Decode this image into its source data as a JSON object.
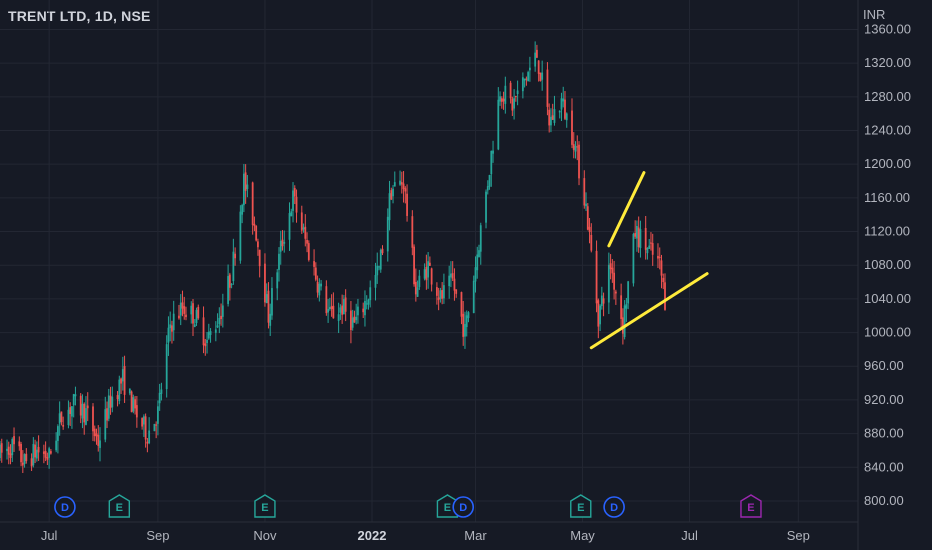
{
  "header": {
    "symbol": "TRENT LTD, 1D, NSE",
    "currency": "INR"
  },
  "colors": {
    "up": "#26a69a",
    "down": "#ef5350",
    "trendline": "#ffeb3b",
    "background": "#161a25",
    "grid": "#232733",
    "text": "#b2b5be",
    "dividend": "#2962ff",
    "earnings": "#26a69a",
    "earnings_future": "#9c27b0"
  },
  "chart_data": {
    "type": "candlestick",
    "title": "TRENT LTD, 1D, NSE",
    "ylabel": "INR",
    "ylim": [
      775,
      1395
    ],
    "y_ticks": [
      "1360.00",
      "1320.00",
      "1280.00",
      "1240.00",
      "1200.00",
      "1160.00",
      "1120.00",
      "1080.00",
      "1040.00",
      "1000.00",
      "960.00",
      "920.00",
      "880.00",
      "840.00",
      "800.00"
    ],
    "x_ticks": [
      {
        "label": "Jul",
        "date": "2021-07-01",
        "bold": false
      },
      {
        "label": "Sep",
        "date": "2021-09-01",
        "bold": false
      },
      {
        "label": "Nov",
        "date": "2021-11-01",
        "bold": false
      },
      {
        "label": "2022",
        "date": "2022-01-01",
        "bold": true
      },
      {
        "label": "Mar",
        "date": "2022-03-01",
        "bold": false
      },
      {
        "label": "May",
        "date": "2022-05-01",
        "bold": false
      },
      {
        "label": "Jul",
        "date": "2022-07-01",
        "bold": false
      },
      {
        "label": "Sep",
        "date": "2022-09-01",
        "bold": false
      }
    ],
    "x_range": [
      "2021-06-03",
      "2022-10-05"
    ],
    "price_path": [
      [
        "2021-06-03",
        855
      ],
      [
        "2021-06-10",
        865
      ],
      [
        "2021-06-17",
        845
      ],
      [
        "2021-06-24",
        860
      ],
      [
        "2021-07-01",
        852
      ],
      [
        "2021-07-08",
        900
      ],
      [
        "2021-07-15",
        915
      ],
      [
        "2021-07-22",
        905
      ],
      [
        "2021-07-29",
        870
      ],
      [
        "2021-08-05",
        920
      ],
      [
        "2021-08-12",
        945
      ],
      [
        "2021-08-19",
        905
      ],
      [
        "2021-08-26",
        880
      ],
      [
        "2021-09-01",
        905
      ],
      [
        "2021-09-08",
        1010
      ],
      [
        "2021-09-15",
        1030
      ],
      [
        "2021-09-22",
        1020
      ],
      [
        "2021-09-29",
        990
      ],
      [
        "2021-10-06",
        1020
      ],
      [
        "2021-10-13",
        1070
      ],
      [
        "2021-10-20",
        1180
      ],
      [
        "2021-10-27",
        1120
      ],
      [
        "2021-11-03",
        1020
      ],
      [
        "2021-11-10",
        1100
      ],
      [
        "2021-11-17",
        1160
      ],
      [
        "2021-11-24",
        1110
      ],
      [
        "2021-12-01",
        1060
      ],
      [
        "2021-12-08",
        1020
      ],
      [
        "2021-12-15",
        1030
      ],
      [
        "2021-12-22",
        1010
      ],
      [
        "2021-12-29",
        1040
      ],
      [
        "2022-01-05",
        1075
      ],
      [
        "2022-01-12",
        1170
      ],
      [
        "2022-01-19",
        1180
      ],
      [
        "2022-01-26",
        1050
      ],
      [
        "2022-02-02",
        1080
      ],
      [
        "2022-02-09",
        1040
      ],
      [
        "2022-02-16",
        1060
      ],
      [
        "2022-02-23",
        1000
      ],
      [
        "2022-03-01",
        1080
      ],
      [
        "2022-03-08",
        1180
      ],
      [
        "2022-03-15",
        1290
      ],
      [
        "2022-03-22",
        1270
      ],
      [
        "2022-03-29",
        1300
      ],
      [
        "2022-04-05",
        1330
      ],
      [
        "2022-04-12",
        1250
      ],
      [
        "2022-04-19",
        1275
      ],
      [
        "2022-04-26",
        1230
      ],
      [
        "2022-05-03",
        1150
      ],
      [
        "2022-05-10",
        1020
      ],
      [
        "2022-05-17",
        1080
      ],
      [
        "2022-05-24",
        1010
      ],
      [
        "2022-05-31",
        1120
      ],
      [
        "2022-06-07",
        1100
      ],
      [
        "2022-06-14",
        1080
      ],
      [
        "2022-06-17",
        1040
      ]
    ],
    "trendlines": [
      {
        "name": "upper",
        "from": [
          "2022-05-16",
          1103
        ],
        "to": [
          "2022-06-05",
          1190
        ]
      },
      {
        "name": "lower",
        "from": [
          "2022-05-06",
          982
        ],
        "to": [
          "2022-07-11",
          1070
        ]
      }
    ],
    "events": [
      {
        "type": "D",
        "date": "2021-07-10"
      },
      {
        "type": "E",
        "date": "2021-08-10"
      },
      {
        "type": "E",
        "date": "2021-11-01"
      },
      {
        "type": "E",
        "date": "2022-02-13"
      },
      {
        "type": "D",
        "date": "2022-02-22"
      },
      {
        "type": "E",
        "date": "2022-04-30"
      },
      {
        "type": "D",
        "date": "2022-05-19"
      },
      {
        "type": "E",
        "date": "2022-08-05",
        "future": true
      }
    ]
  }
}
